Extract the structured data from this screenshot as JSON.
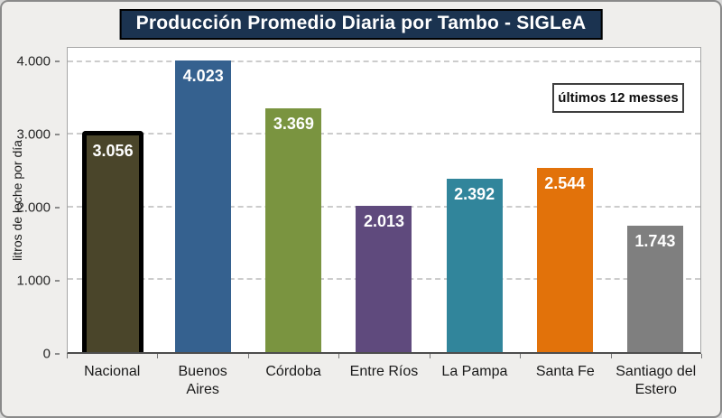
{
  "title": "Producción Promedio Diaria por Tambo - SIGLeA",
  "annotation": "últimos 12 messes",
  "colors": {
    "title_bg": "#1b3350",
    "title_text": "#ffffff",
    "figure_bg": "#efeeec",
    "plot_bg": "#ffffff",
    "gridline": "#cccccc",
    "highlight_border": "#000000"
  },
  "chart_data": {
    "type": "bar",
    "title": "Producción Promedio Diaria por Tambo - SIGLeA",
    "xlabel": "",
    "ylabel": "litros de leche por día",
    "ylim": [
      0,
      4200
    ],
    "grid": "horizontal-dashed",
    "legend": "none",
    "annotation": "últimos 12 messes",
    "categories": [
      "Nacional",
      "Buenos Aires",
      "Córdoba",
      "Entre Ríos",
      "La Pampa",
      "Santa Fe",
      "Santiago del Estero"
    ],
    "values": [
      3056,
      4023,
      3369,
      2013,
      2392,
      2544,
      1743
    ],
    "value_labels": [
      "3.056",
      "4.023",
      "3.369",
      "2.013",
      "2.392",
      "2.544",
      "1.743"
    ],
    "bar_colors": [
      "#4a452a",
      "#35618f",
      "#7a9440",
      "#5f4a7d",
      "#31859b",
      "#e2720a",
      "#7f7f7f"
    ],
    "highlight_index": 0,
    "yticks": [
      {
        "value": 0,
        "label": "0"
      },
      {
        "value": 1000,
        "label": "1.000"
      },
      {
        "value": 2000,
        "label": "2.000"
      },
      {
        "value": 3000,
        "label": "3.000"
      },
      {
        "value": 4000,
        "label": "4.000"
      }
    ]
  }
}
